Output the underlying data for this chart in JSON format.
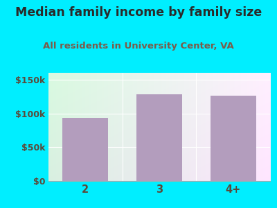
{
  "title": "Median family income by family size",
  "subtitle": "All residents in University Center, VA",
  "categories": [
    "2",
    "3",
    "4+"
  ],
  "values": [
    93000,
    128000,
    126000
  ],
  "bar_color": "#b39dbd",
  "background_outer": "#00eeff",
  "title_color": "#2a2a2a",
  "subtitle_color": "#7a5c4a",
  "tick_color": "#5a4a3a",
  "yticks": [
    0,
    50000,
    100000,
    150000
  ],
  "ytick_labels": [
    "$0",
    "$50k",
    "$100k",
    "$150k"
  ],
  "ylim": [
    0,
    160000
  ],
  "title_fontsize": 12.5,
  "subtitle_fontsize": 9.5
}
